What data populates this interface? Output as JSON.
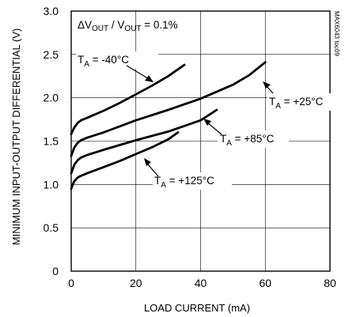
{
  "chart_data": {
    "type": "line",
    "title": "",
    "annotation_condition": {
      "main": "ΔV",
      "s1": "OUT",
      "mid": " / V",
      "s2": "OUT",
      "tail": " = 0.1%"
    },
    "code_label": "MAX6043 toc09",
    "xlabel": "LOAD CURRENT (mA)",
    "ylabel": "MINIMUM INPUT-OUTPUT DIFFERENTIAL (V)",
    "xlim": [
      0,
      80
    ],
    "ylim": [
      0,
      3.0
    ],
    "x_ticks": [
      "0",
      "20",
      "40",
      "60",
      "80"
    ],
    "y_ticks": [
      "0",
      "0.5",
      "1.0",
      "1.5",
      "2.0",
      "2.5",
      "3.0"
    ],
    "grid": true,
    "series": [
      {
        "name": "T_A = -40°C",
        "label": {
          "pre": "T",
          "sub": "A",
          "post": " = -40°C"
        },
        "x": [
          0,
          0.5,
          1,
          2,
          3,
          5,
          10,
          15,
          20,
          25,
          30,
          35
        ],
        "y": [
          1.58,
          1.62,
          1.66,
          1.71,
          1.74,
          1.77,
          1.85,
          1.94,
          2.04,
          2.14,
          2.25,
          2.38
        ]
      },
      {
        "name": "T_A = +25°C",
        "label": {
          "pre": "T",
          "sub": "A",
          "post": " = +25°C"
        },
        "x": [
          0,
          0.5,
          1,
          2,
          3,
          5,
          10,
          20,
          30,
          40,
          50,
          55,
          60
        ],
        "y": [
          1.33,
          1.38,
          1.43,
          1.48,
          1.51,
          1.54,
          1.6,
          1.74,
          1.86,
          1.99,
          2.15,
          2.26,
          2.41
        ]
      },
      {
        "name": "T_A = +85°C",
        "label": {
          "pre": "T",
          "sub": "A",
          "post": " = +85°C"
        },
        "x": [
          0,
          0.5,
          1,
          2,
          3,
          5,
          10,
          20,
          30,
          40,
          45
        ],
        "y": [
          1.13,
          1.18,
          1.23,
          1.28,
          1.31,
          1.34,
          1.4,
          1.51,
          1.61,
          1.74,
          1.86
        ]
      },
      {
        "name": "T_A = +125°C",
        "label": {
          "pre": "T",
          "sub": "A",
          "post": " = +125°C"
        },
        "x": [
          0,
          0.5,
          1,
          2,
          3,
          5,
          10,
          15,
          20,
          25,
          30,
          33
        ],
        "y": [
          0.95,
          1.0,
          1.04,
          1.08,
          1.1,
          1.13,
          1.2,
          1.27,
          1.35,
          1.43,
          1.52,
          1.6
        ]
      }
    ]
  }
}
